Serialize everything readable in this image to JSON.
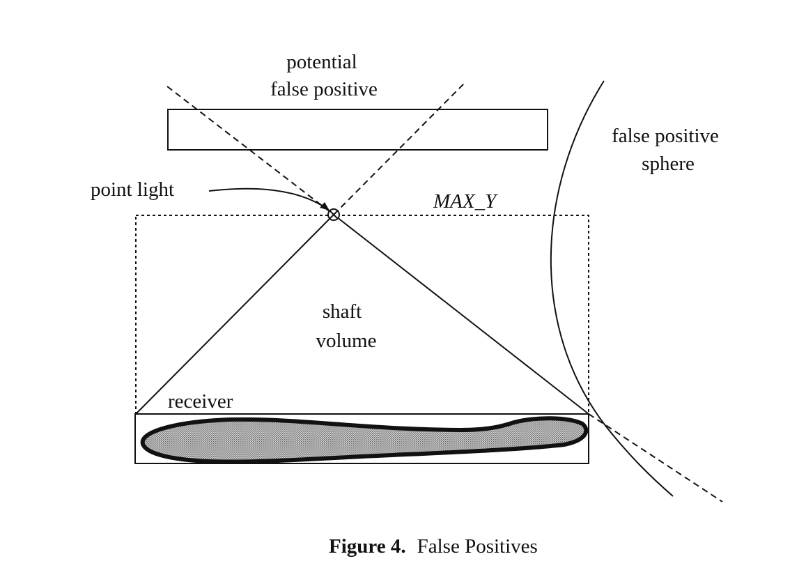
{
  "labels": {
    "potential_line1": "potential",
    "potential_line2": "false positive",
    "sphere_line1": "false positive",
    "sphere_line2": "sphere",
    "point_light": "point light",
    "max_y": "MAX_Y",
    "shaft_line1": "shaft",
    "shaft_line2": "volume",
    "receiver": "receiver"
  },
  "caption": {
    "number": "Figure 4.",
    "text": "False Positives"
  },
  "colors": {
    "ink": "#111111",
    "receiver_fill": "#a8a8a8"
  }
}
